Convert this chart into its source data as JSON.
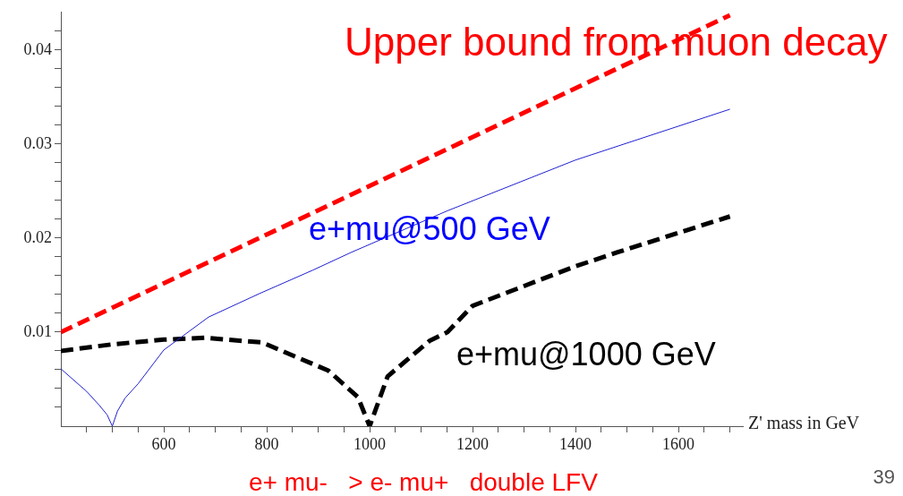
{
  "chart_data": {
    "type": "line",
    "xlabel": "Z' mass in GeV",
    "xlim": [
      400,
      1725
    ],
    "ylim": [
      0,
      0.044
    ],
    "xticks": [
      {
        "value": 450,
        "label": null
      },
      {
        "value": 500,
        "label": null
      },
      {
        "value": 550,
        "label": null
      },
      600,
      {
        "value": 650,
        "label": null
      },
      {
        "value": 700,
        "label": null
      },
      {
        "value": 750,
        "label": null
      },
      800,
      {
        "value": 850,
        "label": null
      },
      {
        "value": 900,
        "label": null
      },
      {
        "value": 950,
        "label": null
      },
      1000,
      {
        "value": 1050,
        "label": null
      },
      {
        "value": 1100,
        "label": null
      },
      {
        "value": 1150,
        "label": null
      },
      1200,
      {
        "value": 1250,
        "label": null
      },
      {
        "value": 1300,
        "label": null
      },
      {
        "value": 1350,
        "label": null
      },
      1400,
      {
        "value": 1450,
        "label": null
      },
      {
        "value": 1500,
        "label": null
      },
      {
        "value": 1550,
        "label": null
      },
      1600,
      {
        "value": 1650,
        "label": null
      },
      {
        "value": 1700,
        "label": null
      }
    ],
    "yticks": [
      {
        "value": 0.002,
        "label": null
      },
      {
        "value": 0.004,
        "label": null
      },
      {
        "value": 0.006,
        "label": null
      },
      {
        "value": 0.008,
        "label": null
      },
      0.01,
      {
        "value": 0.012,
        "label": null
      },
      {
        "value": 0.014,
        "label": null
      },
      {
        "value": 0.016,
        "label": null
      },
      {
        "value": 0.018,
        "label": null
      },
      0.02,
      {
        "value": 0.022,
        "label": null
      },
      {
        "value": 0.024,
        "label": null
      },
      {
        "value": 0.026,
        "label": null
      },
      {
        "value": 0.028,
        "label": null
      },
      0.03,
      {
        "value": 0.032,
        "label": null
      },
      {
        "value": 0.034,
        "label": null
      },
      {
        "value": 0.036,
        "label": null
      },
      {
        "value": 0.038,
        "label": null
      },
      0.04,
      {
        "value": 0.042,
        "label": null
      }
    ],
    "grid": false,
    "legend": false,
    "marker": "none",
    "series": [
      {
        "name": "Upper bound from muon decay",
        "color": "#ff0000",
        "line_style": "dashed",
        "x": [
          400,
          1700
        ],
        "values": [
          0.01,
          0.0437
        ]
      },
      {
        "name": "e+mu@500 GeV",
        "color": "#2020d0",
        "line_style": "solid",
        "x": [
          400,
          450,
          475,
          490,
          500,
          510,
          525,
          550,
          600,
          687,
          786,
          890,
          965,
          1151,
          1400,
          1700
        ],
        "values": [
          0.0061,
          0.0037,
          0.0022,
          0.0012,
          0,
          0.0016,
          0.003,
          0.0045,
          0.0081,
          0.0116,
          0.0141,
          0.0166,
          0.0185,
          0.0229,
          0.0283,
          0.0337
        ]
      },
      {
        "name": "e+mu@1000 GeV",
        "color": "#000000",
        "line_style": "dashed",
        "x": [
          400,
          500,
          600,
          680,
          791,
          920,
          977,
          1000,
          1035,
          1117,
          1151,
          1200,
          1400,
          1482,
          1700
        ],
        "values": [
          0.008,
          0.0087,
          0.0092,
          0.0094,
          0.0089,
          0.0059,
          0.0031,
          0,
          0.0053,
          0.0091,
          0.01,
          0.0128,
          0.017,
          0.0185,
          0.0223
        ]
      }
    ],
    "annotations": [
      "e+ mu-   > e- mu+   double LFV",
      "39"
    ]
  }
}
